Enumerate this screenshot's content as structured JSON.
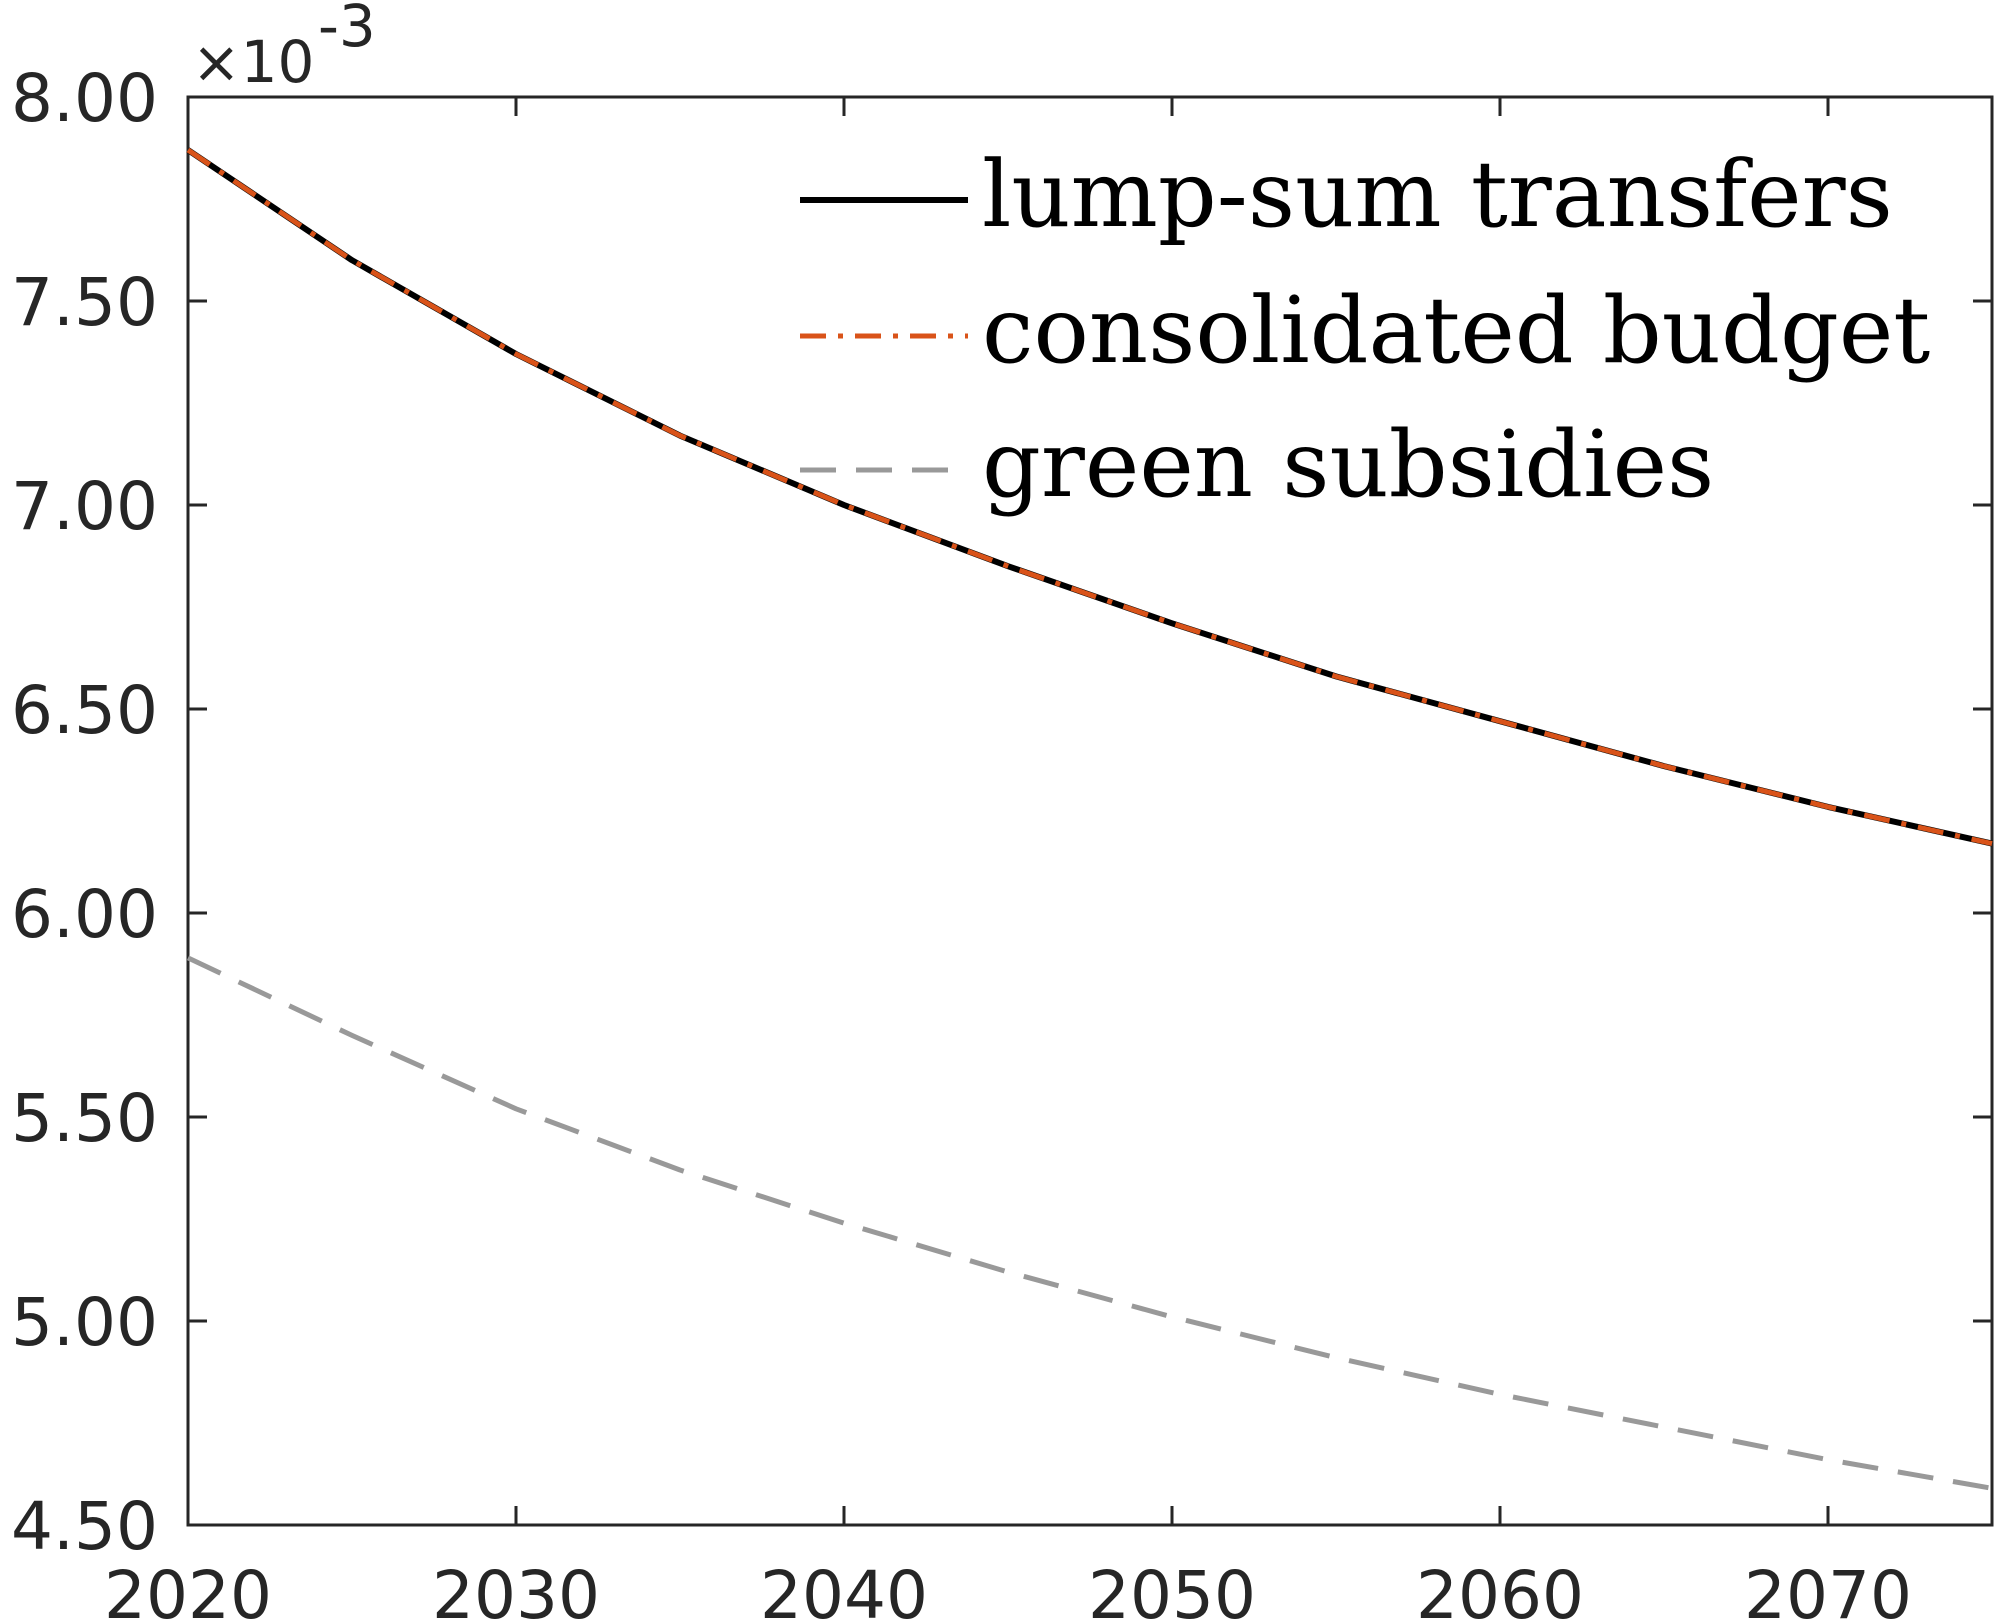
{
  "colors": {
    "axis": "#262626",
    "background": "#ffffff"
  },
  "chart_data": {
    "type": "line",
    "title": "",
    "xlabel": "",
    "ylabel": "",
    "y_multiplier": {
      "base": "×10",
      "exponent": "-3"
    },
    "xlim": [
      2020,
      2075
    ],
    "ylim": [
      4.5,
      8.0
    ],
    "x_ticks": [
      2020,
      2030,
      2040,
      2050,
      2060,
      2070
    ],
    "x_tick_labels": [
      "2020",
      "2030",
      "2040",
      "2050",
      "2060",
      "2070"
    ],
    "y_ticks": [
      4.5,
      5.0,
      5.5,
      6.0,
      6.5,
      7.0,
      7.5,
      8.0
    ],
    "y_tick_labels": [
      "4.50",
      "5.00",
      "5.50",
      "6.00",
      "6.50",
      "7.00",
      "7.50",
      "8.00"
    ],
    "grid": false,
    "box": true,
    "legend_position": "top-right",
    "x": [
      2020,
      2025,
      2030,
      2035,
      2040,
      2045,
      2050,
      2055,
      2060,
      2065,
      2070,
      2075
    ],
    "series": [
      {
        "name": "lump-sum transfers",
        "color": "#000000",
        "line_style": "solid",
        "values": [
          7.87,
          7.6,
          7.37,
          7.17,
          7.0,
          6.85,
          6.71,
          6.58,
          6.47,
          6.36,
          6.26,
          6.17
        ]
      },
      {
        "name": "consolidated budget",
        "color": "#D95319",
        "line_style": "dash-dot",
        "values": [
          7.87,
          7.6,
          7.37,
          7.17,
          7.0,
          6.85,
          6.71,
          6.58,
          6.47,
          6.36,
          6.26,
          6.17
        ]
      },
      {
        "name": "green subsidies",
        "color": "#999999",
        "line_style": "dashed",
        "values": [
          5.89,
          5.7,
          5.52,
          5.37,
          5.24,
          5.12,
          5.01,
          4.91,
          4.82,
          4.74,
          4.66,
          4.59
        ]
      }
    ]
  }
}
